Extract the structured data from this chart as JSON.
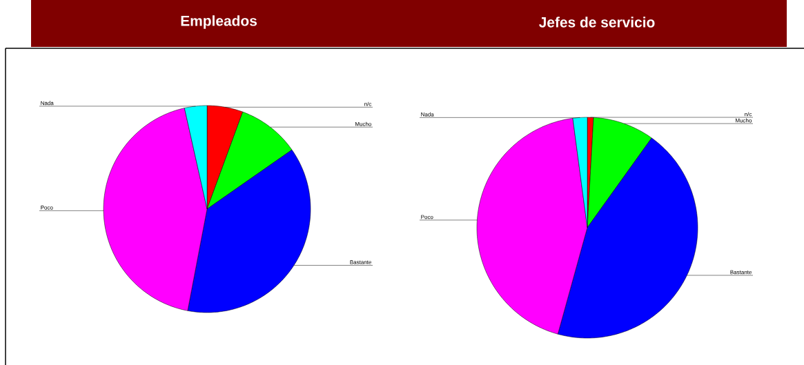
{
  "chart_data": [
    {
      "type": "pie",
      "title": "Empleados",
      "categories": [
        "n/c",
        "Mucho",
        "Bastante",
        "Poco",
        "Nada"
      ],
      "values": [
        5.6,
        9.7,
        37.7,
        43.5,
        3.5
      ],
      "colors": [
        "#ff0000",
        "#00ff00",
        "#0000ff",
        "#ff00ff",
        "#00ffff"
      ]
    },
    {
      "type": "pie",
      "title": "Jefes de servicio",
      "categories": [
        "n/c",
        "Mucho",
        "Bastante",
        "Poco",
        "Nada"
      ],
      "values": [
        0.9,
        9.0,
        44.4,
        43.6,
        2.1
      ],
      "colors": [
        "#ff0000",
        "#00ff00",
        "#0000ff",
        "#ff00ff",
        "#00ffff"
      ]
    }
  ]
}
